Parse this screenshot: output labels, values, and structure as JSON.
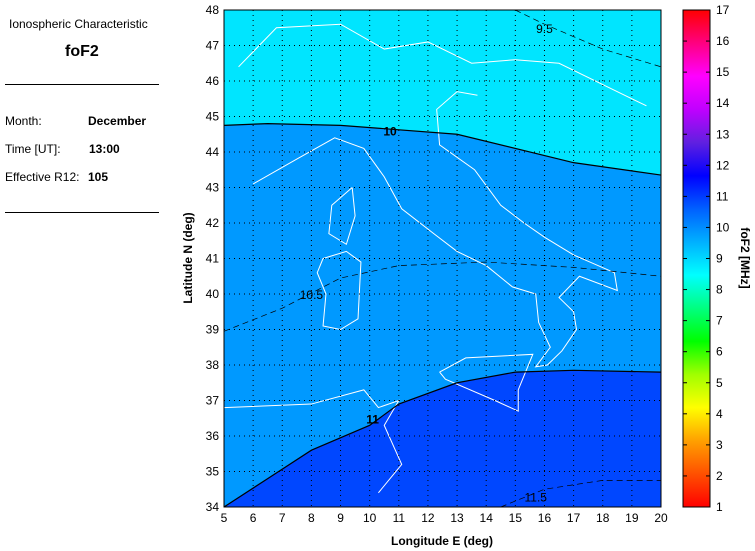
{
  "panel": {
    "heading": "Ionospheric Characteristic",
    "characteristic": "foF2",
    "month_label": "Month:",
    "month": "December",
    "time_label": "Time [UT]:",
    "time": "13:00",
    "r12_label": "Effective R12:",
    "r12": "105"
  },
  "map": {
    "xlabel": "Longitude E (deg)",
    "ylabel": "Latitude N (deg)",
    "xlim": [
      5,
      20
    ],
    "ylim": [
      34,
      48
    ],
    "xticks": [
      5,
      6,
      7,
      8,
      9,
      10,
      11,
      12,
      13,
      14,
      15,
      16,
      17,
      18,
      19,
      20
    ],
    "yticks": [
      34,
      35,
      36,
      37,
      38,
      39,
      40,
      41,
      42,
      43,
      44,
      45,
      46,
      47,
      48
    ],
    "grid": true,
    "band_colors": {
      "9.5-10": "#00e5ff",
      "10-11": "#0099ff",
      "11-11.5": "#0047ff"
    },
    "contours": [
      {
        "level": "9.5",
        "style": "dashed",
        "points": [
          [
            15,
            48
          ],
          [
            16,
            47.6
          ],
          [
            18,
            46.9
          ],
          [
            20,
            46.4
          ]
        ],
        "label_at": [
          16,
          47.5
        ]
      },
      {
        "level": "10",
        "style": "solid",
        "points": [
          [
            5,
            44.75
          ],
          [
            6.5,
            44.8
          ],
          [
            9,
            44.75
          ],
          [
            13,
            44.5
          ],
          [
            17,
            43.7
          ],
          [
            20,
            43.35
          ]
        ],
        "label_at": [
          10.7,
          44.6
        ]
      },
      {
        "level": "10.5",
        "style": "dashed",
        "points": [
          [
            5,
            38.95
          ],
          [
            7,
            39.6
          ],
          [
            9,
            40.45
          ],
          [
            11,
            40.8
          ],
          [
            14,
            40.9
          ],
          [
            17,
            40.75
          ],
          [
            20,
            40.5
          ]
        ],
        "label_at": [
          8,
          40.0
        ]
      },
      {
        "level": "11",
        "style": "solid",
        "points": [
          [
            5,
            34
          ],
          [
            6.5,
            34.8
          ],
          [
            8,
            35.6
          ],
          [
            10,
            36.3
          ],
          [
            11,
            36.9
          ],
          [
            13,
            37.5
          ],
          [
            15,
            37.8
          ],
          [
            17,
            37.85
          ],
          [
            20,
            37.8
          ]
        ],
        "label_at": [
          10.1,
          36.5
        ]
      },
      {
        "level": "11.5",
        "style": "dashed",
        "points": [
          [
            14.5,
            34
          ],
          [
            16,
            34.5
          ],
          [
            18,
            34.75
          ],
          [
            20,
            34.75
          ]
        ],
        "label_at": [
          15.7,
          34.3
        ]
      }
    ]
  },
  "colorbar": {
    "label": "foF2 [MHz]",
    "range": [
      1,
      17
    ],
    "ticks": [
      1,
      2,
      3,
      4,
      5,
      6,
      7,
      8,
      9,
      10,
      11,
      12,
      13,
      14,
      15,
      16,
      17
    ],
    "colors": [
      "#ff0000",
      "#ff5000",
      "#ffa000",
      "#ffff00",
      "#a0ff00",
      "#00ff00",
      "#00ff80",
      "#00ffff",
      "#00b0ff",
      "#0060ff",
      "#0000ff",
      "#6020e0",
      "#c000ff",
      "#ff00ff",
      "#ff0080",
      "#ff0000"
    ]
  }
}
